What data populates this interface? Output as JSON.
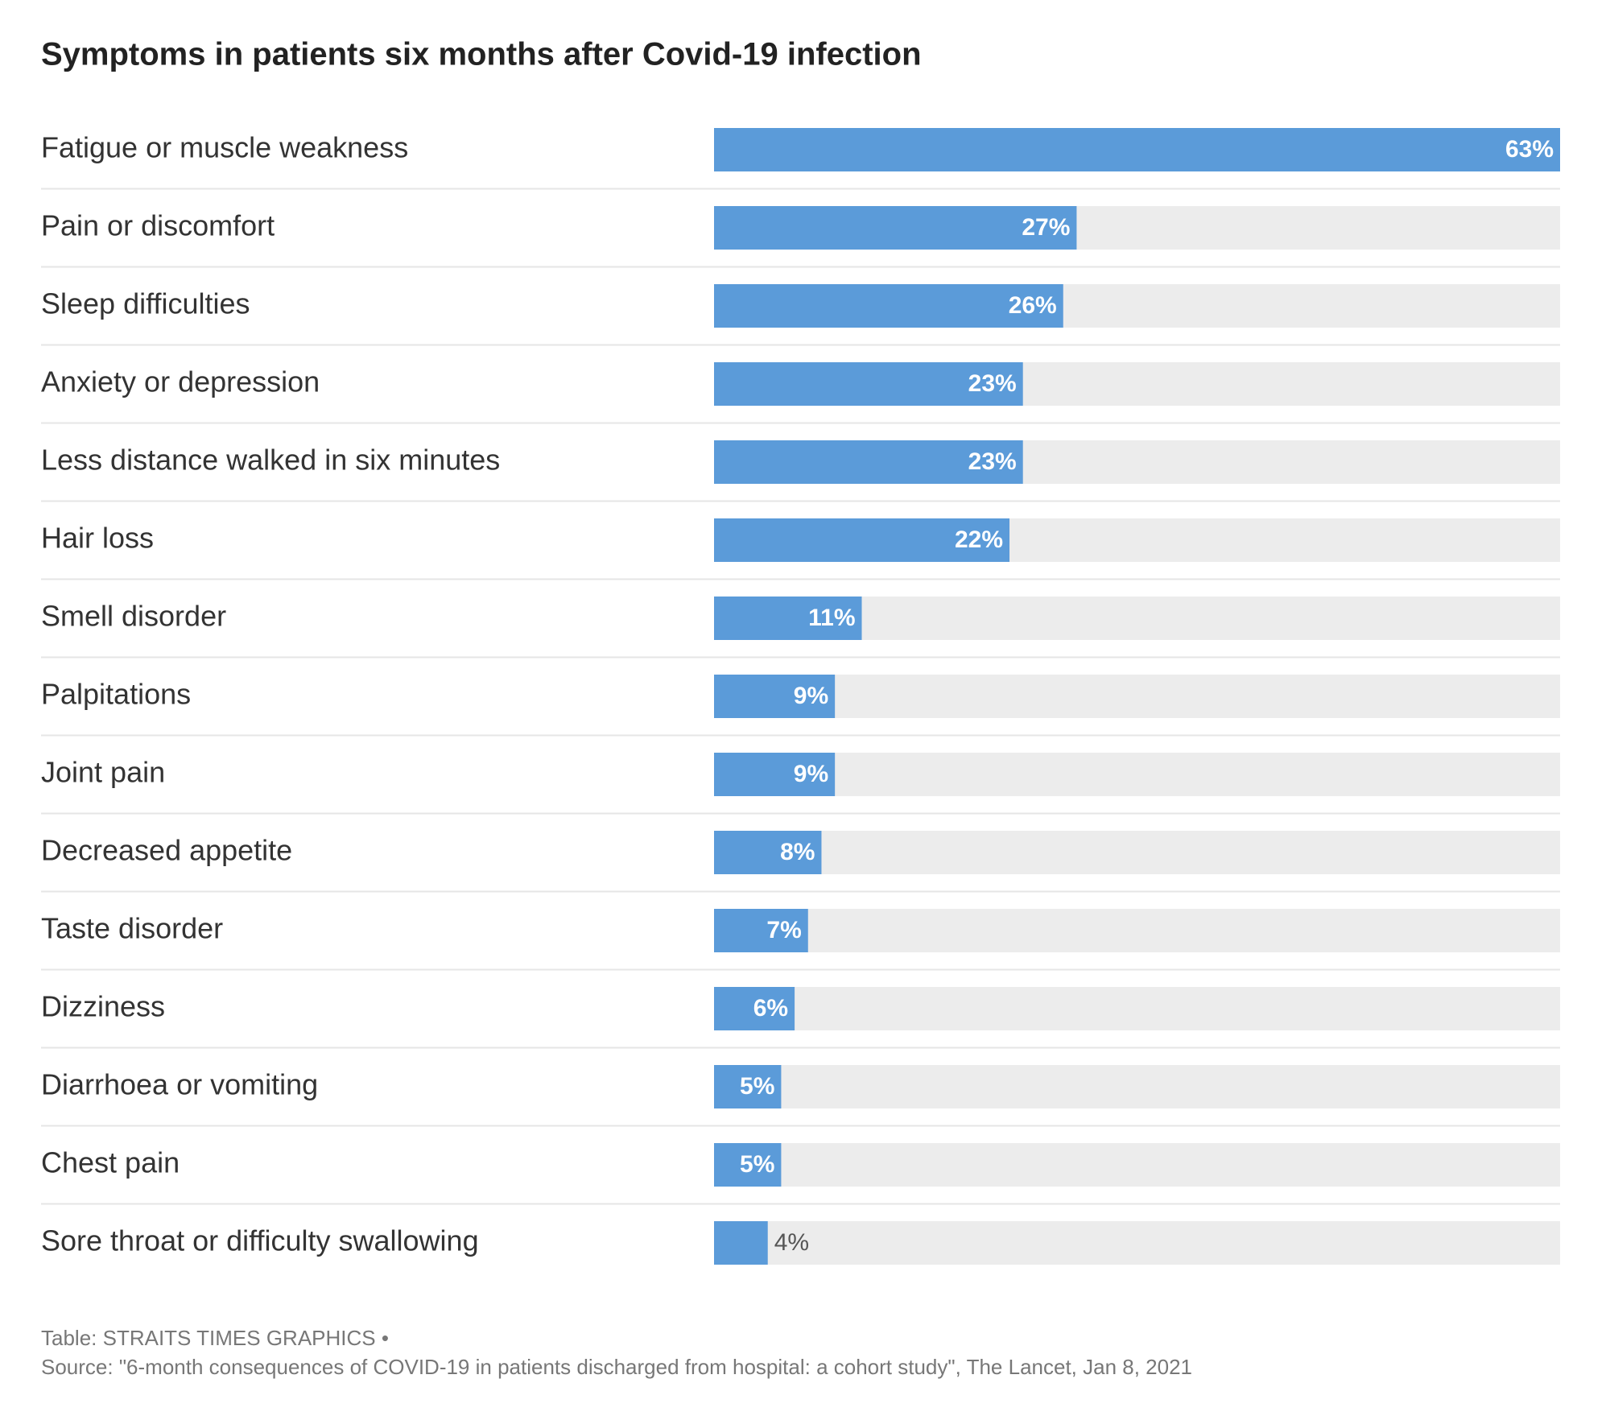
{
  "chart_data": {
    "type": "bar",
    "orientation": "horizontal",
    "title": "Symptoms in patients six months after Covid-19 infection",
    "categories": [
      "Fatigue or muscle weakness",
      "Pain or discomfort",
      "Sleep difficulties",
      "Anxiety or depression",
      "Less distance walked in six minutes",
      "Hair loss",
      "Smell disorder",
      "Palpitations",
      "Joint pain",
      "Decreased appetite",
      "Taste disorder",
      "Dizziness",
      "Diarrhoea or vomiting",
      "Chest pain",
      "Sore throat or difficulty swallowing"
    ],
    "values": [
      63,
      27,
      26,
      23,
      23,
      22,
      11,
      9,
      9,
      8,
      7,
      6,
      5,
      5,
      4
    ],
    "value_labels": [
      "63%",
      "27%",
      "26%",
      "23%",
      "23%",
      "22%",
      "11%",
      "9%",
      "9%",
      "8%",
      "7%",
      "6%",
      "5%",
      "5%",
      "4%"
    ],
    "color": "#5b9bd9",
    "track_color": "#ececec",
    "xlim": [
      0,
      63
    ],
    "caption": "Table: STRAITS TIMES GRAPHICS •",
    "source": "Source: \"6-month consequences of COVID-19 in patients discharged from hospital: a cohort study\", The Lancet, Jan 8, 2021"
  }
}
